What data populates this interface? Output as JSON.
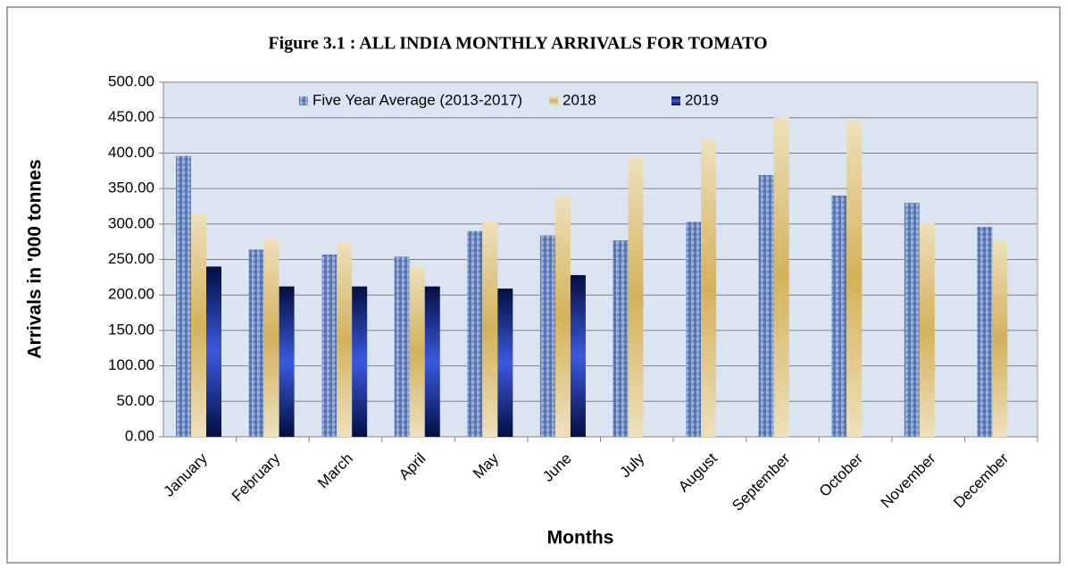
{
  "chart_data": {
    "type": "bar",
    "title": "Figure 3.1 :  ALL INDIA MONTHLY ARRIVALS FOR TOMATO",
    "x_label": "Months",
    "y_label": "Arrivals in '000 tonnes",
    "categories": [
      "January",
      "February",
      "March",
      "April",
      "May",
      "June",
      "July",
      "August",
      "September",
      "October",
      "November",
      "December"
    ],
    "series": [
      {
        "name": "Five Year Average (2013-2017)",
        "color": "#5b7ec4",
        "values": [
          396,
          264,
          257,
          254,
          290,
          284,
          277,
          303,
          369,
          340,
          330,
          296
        ]
      },
      {
        "name": "2018",
        "color": "#d4b25a",
        "values": [
          315,
          280,
          274,
          240,
          304,
          340,
          394,
          420,
          451,
          446,
          302,
          277
        ]
      },
      {
        "name": "2019",
        "color": "#0a2fd6",
        "values": [
          240,
          212,
          212,
          212,
          209,
          228,
          null,
          null,
          null,
          null,
          null,
          null
        ]
      }
    ],
    "ylim": [
      0,
      500
    ],
    "yticks": [
      {
        "value": 0,
        "label": "0.00"
      },
      {
        "value": 50,
        "label": "50.00"
      },
      {
        "value": 100,
        "label": "100.00"
      },
      {
        "value": 150,
        "label": "150.00"
      },
      {
        "value": 200,
        "label": "200.00"
      },
      {
        "value": 250,
        "label": "250.00"
      },
      {
        "value": 300,
        "label": "300.00"
      },
      {
        "value": 350,
        "label": "350.00"
      },
      {
        "value": 400,
        "label": "400.00"
      },
      {
        "value": 450,
        "label": "450.00"
      },
      {
        "value": 500,
        "label": "500.00"
      }
    ],
    "grid": true,
    "legend": "top"
  }
}
